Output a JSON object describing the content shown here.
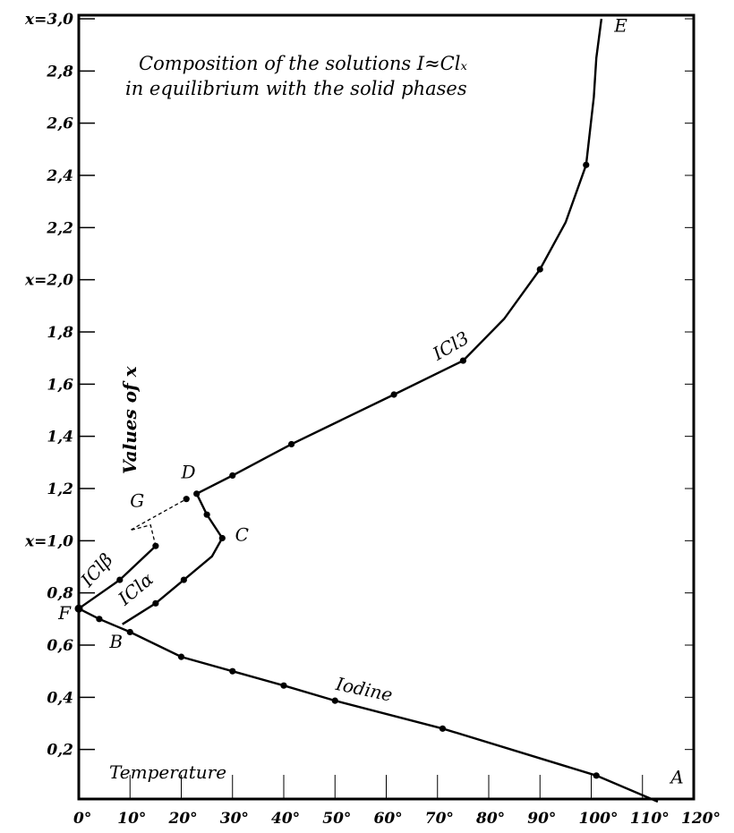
{
  "chart_data": {
    "type": "line",
    "title_lines": [
      "Composition of the solutions I≈Clₓ",
      "in equilibrium with the solid phases"
    ],
    "xlabel": "Temperature",
    "ylabel": "Values of x",
    "xlim": [
      0,
      120
    ],
    "ylim": [
      0,
      3.0
    ],
    "grid": false,
    "x_ticks": [
      "0°",
      "10°",
      "20°",
      "30°",
      "40°",
      "50°",
      "60°",
      "70°",
      "80°",
      "90°",
      "100°",
      "110°",
      "120°"
    ],
    "x_tick_values": [
      0,
      10,
      20,
      30,
      40,
      50,
      60,
      70,
      80,
      90,
      100,
      110,
      120
    ],
    "y_ticks": [
      "0,2",
      "0,4",
      "0,6",
      "0,8",
      "x=1,0",
      "1,2",
      "1,4",
      "1,6",
      "1,8",
      "x=2,0",
      "2,2",
      "2,4",
      "2,6",
      "2,8",
      "x=3,0"
    ],
    "y_tick_values": [
      0.2,
      0.4,
      0.6,
      0.8,
      1.0,
      1.2,
      1.4,
      1.6,
      1.8,
      2.0,
      2.2,
      2.4,
      2.6,
      2.8,
      3.0
    ],
    "series": [
      {
        "name": "Iodine",
        "style": "solid",
        "points": [
          [
            0,
            0.74
          ],
          [
            4,
            0.7
          ],
          [
            10,
            0.65
          ],
          [
            20,
            0.555
          ],
          [
            30,
            0.5
          ],
          [
            40,
            0.445
          ],
          [
            50,
            0.387
          ],
          [
            71,
            0.28
          ],
          [
            101,
            0.1
          ],
          [
            113,
            0.0
          ]
        ],
        "markers": [
          [
            0,
            0.74
          ],
          [
            4,
            0.7
          ],
          [
            10,
            0.65
          ],
          [
            20,
            0.555
          ],
          [
            30,
            0.5
          ],
          [
            40,
            0.445
          ],
          [
            50,
            0.387
          ],
          [
            71,
            0.28
          ],
          [
            101,
            0.1
          ]
        ]
      },
      {
        "name": "IClα",
        "style": "solid",
        "points": [
          [
            8.5,
            0.68
          ],
          [
            15,
            0.76
          ],
          [
            20.5,
            0.85
          ],
          [
            26,
            0.94
          ],
          [
            28,
            1.01
          ]
        ],
        "markers": [
          [
            15,
            0.76
          ],
          [
            20.5,
            0.85
          ]
        ]
      },
      {
        "name": "IClβ",
        "style": "solid",
        "points": [
          [
            0,
            0.74
          ],
          [
            8,
            0.85
          ],
          [
            15,
            0.98
          ]
        ],
        "markers": [
          [
            8,
            0.85
          ],
          [
            15,
            0.98
          ]
        ]
      },
      {
        "name": "",
        "style": "dashed",
        "points": [
          [
            15,
            0.98
          ],
          [
            14,
            1.06
          ],
          [
            10,
            1.04
          ],
          [
            21,
            1.16
          ]
        ],
        "markers": []
      },
      {
        "name": "",
        "style": "solid",
        "points": [
          [
            28,
            1.01
          ],
          [
            25,
            1.1
          ],
          [
            23,
            1.18
          ]
        ],
        "markers": [
          [
            28,
            1.01
          ],
          [
            25,
            1.1
          ],
          [
            23,
            1.18
          ],
          [
            21,
            1.16
          ]
        ]
      },
      {
        "name": "ICl3",
        "style": "solid",
        "points": [
          [
            23,
            1.18
          ],
          [
            30,
            1.25
          ],
          [
            41.5,
            1.37
          ],
          [
            61.5,
            1.56
          ],
          [
            75,
            1.69
          ],
          [
            83,
            1.85
          ],
          [
            90,
            2.04
          ],
          [
            95,
            2.22
          ],
          [
            99,
            2.44
          ],
          [
            100.5,
            2.7
          ],
          [
            101,
            2.85
          ],
          [
            102,
            3.0
          ]
        ],
        "markers": [
          [
            30,
            1.25
          ],
          [
            41.5,
            1.37
          ],
          [
            61.5,
            1.56
          ],
          [
            75,
            1.69
          ],
          [
            90,
            2.04
          ],
          [
            99,
            2.44
          ]
        ]
      }
    ],
    "point_labels": [
      {
        "text": "A",
        "x": 115.5,
        "y": 0.07
      },
      {
        "text": "B",
        "x": 6,
        "y": 0.59
      },
      {
        "text": "C",
        "x": 30.5,
        "y": 1.0
      },
      {
        "text": "D",
        "x": 20,
        "y": 1.24
      },
      {
        "text": "E",
        "x": 104.5,
        "y": 2.95
      },
      {
        "text": "F",
        "x": -4,
        "y": 0.7
      },
      {
        "text": "G",
        "x": 10,
        "y": 1.13
      }
    ],
    "curve_labels": [
      {
        "text": "Iodine",
        "x": 50,
        "y": 0.43,
        "rotate": 12
      },
      {
        "text": "ICl3",
        "x": 70,
        "y": 1.69,
        "rotate": -30
      },
      {
        "text": "IClα",
        "x": 9,
        "y": 0.75,
        "rotate": -40
      },
      {
        "text": "IClβ",
        "x": 2,
        "y": 0.82,
        "rotate": -48
      }
    ]
  }
}
